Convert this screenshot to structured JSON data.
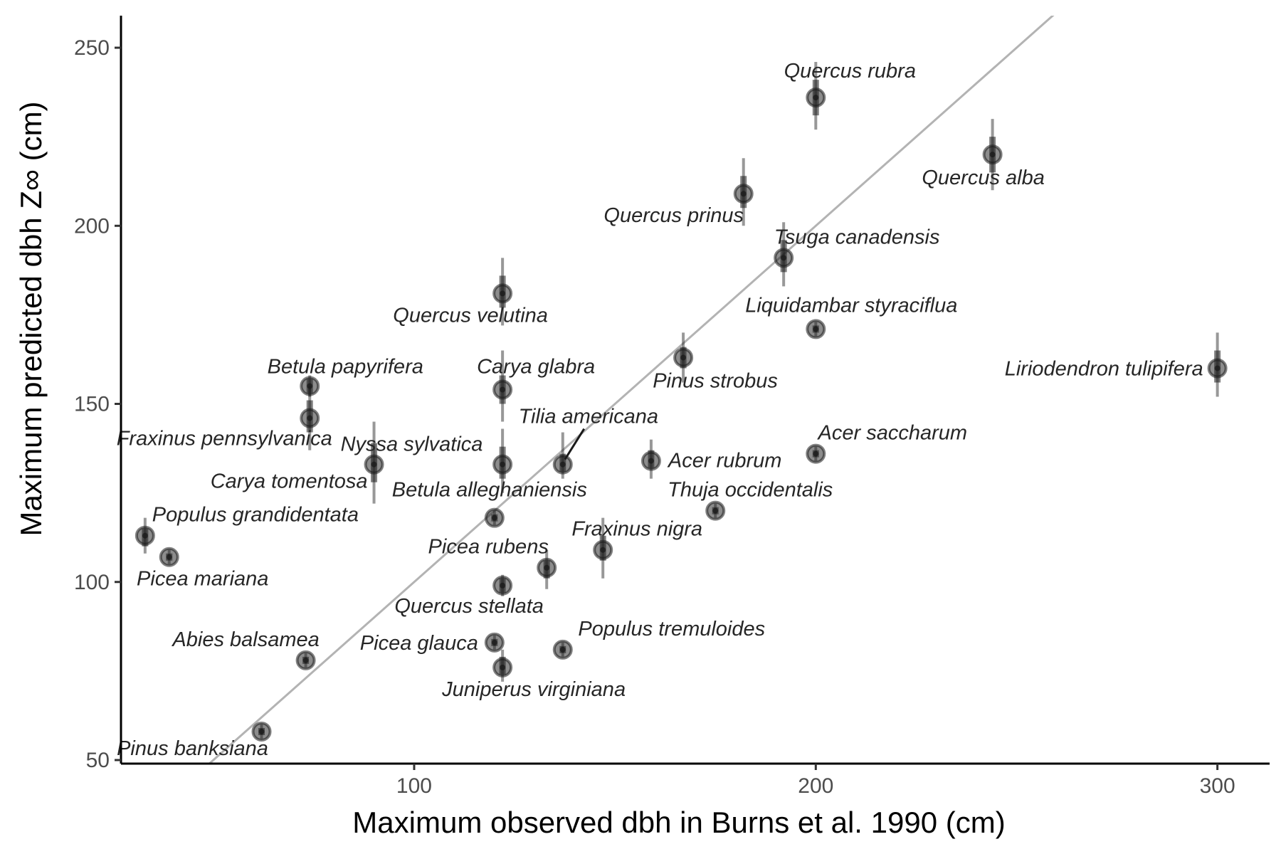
{
  "chart_data": {
    "type": "scatter",
    "title": "",
    "xlabel": "Maximum observed dbh in Burns et al. 1990 (cm)",
    "ylabel": "Maximum predicted dbh Z∞ (cm)",
    "xlim": [
      27,
      313
    ],
    "ylim": [
      49,
      259
    ],
    "x_ticks": [
      100,
      200,
      300
    ],
    "y_ticks": [
      50,
      100,
      150,
      200,
      250
    ],
    "grid": false,
    "legend": "none",
    "reference_line": {
      "slope": 1,
      "intercept": 0,
      "color": "#b3b3b3"
    },
    "colors": {
      "point": "#1a1a1a",
      "interval": "#1a1a1a",
      "reference_line": "#b3b3b3",
      "axis": "#000000"
    },
    "points": [
      {
        "name": "Quercus rubra",
        "x": 200,
        "y": 236,
        "lo80": 231,
        "hi80": 241,
        "lo95": 227,
        "hi95": 246
      },
      {
        "name": "Quercus alba",
        "x": 244,
        "y": 220,
        "lo80": 215,
        "hi80": 225,
        "lo95": 210,
        "hi95": 230
      },
      {
        "name": "Quercus prinus",
        "x": 182,
        "y": 209,
        "lo80": 205,
        "hi80": 214,
        "lo95": 200,
        "hi95": 219
      },
      {
        "name": "Tsuga canadensis",
        "x": 192,
        "y": 191,
        "lo80": 187,
        "hi80": 196,
        "lo95": 183,
        "hi95": 201
      },
      {
        "name": "Quercus velutina",
        "x": 122,
        "y": 181,
        "lo80": 177,
        "hi80": 186,
        "lo95": 172,
        "hi95": 191
      },
      {
        "name": "Liquidambar styraciflua",
        "x": 200,
        "y": 171,
        "lo80": 170,
        "hi80": 172,
        "lo95": 169,
        "hi95": 173
      },
      {
        "name": "Liriodendron tulipifera",
        "x": 300,
        "y": 160,
        "lo80": 156,
        "hi80": 165,
        "lo95": 152,
        "hi95": 170
      },
      {
        "name": "Pinus strobus",
        "x": 167,
        "y": 163,
        "lo80": 160,
        "hi80": 166,
        "lo95": 156,
        "hi95": 170
      },
      {
        "name": "Betula papyrifera",
        "x": 74,
        "y": 155,
        "lo80": 153,
        "hi80": 157,
        "lo95": 152,
        "hi95": 158
      },
      {
        "name": "Carya glabra",
        "x": 122,
        "y": 154,
        "lo80": 150,
        "hi80": 158,
        "lo95": 145,
        "hi95": 165
      },
      {
        "name": "Fraxinus pennsylvanica",
        "x": 74,
        "y": 146,
        "lo80": 142,
        "hi80": 151,
        "lo95": 137,
        "hi95": 155
      },
      {
        "name": "Nyssa sylvatica",
        "x": 90,
        "y": 133,
        "lo80": 128,
        "hi80": 139,
        "lo95": 122,
        "hi95": 145
      },
      {
        "name": "Carya tomentosa",
        "x": 122,
        "y": 133,
        "lo80": 129,
        "hi80": 138,
        "lo95": 125,
        "hi95": 143
      },
      {
        "name": "Tilia americana",
        "x": 137,
        "y": 133,
        "lo80": 131,
        "hi80": 136,
        "lo95": 129,
        "hi95": 142
      },
      {
        "name": "Acer rubrum",
        "x": 159,
        "y": 134,
        "lo80": 132,
        "hi80": 137,
        "lo95": 129,
        "hi95": 140
      },
      {
        "name": "Acer saccharum",
        "x": 200,
        "y": 136,
        "lo80": 135,
        "hi80": 137,
        "lo95": 134,
        "hi95": 138
      },
      {
        "name": "Betula alleghaniensis",
        "x": 120,
        "y": 118,
        "lo80": 117,
        "hi80": 119,
        "lo95": 116,
        "hi95": 120
      },
      {
        "name": "Thuja occidentalis",
        "x": 175,
        "y": 120,
        "lo80": 119,
        "hi80": 121,
        "lo95": 118,
        "hi95": 122
      },
      {
        "name": "Populus grandidentata",
        "x": 33,
        "y": 113,
        "lo80": 110,
        "hi80": 115,
        "lo95": 108,
        "hi95": 118
      },
      {
        "name": "Picea mariana",
        "x": 39,
        "y": 107,
        "lo80": 106,
        "hi80": 108,
        "lo95": 105,
        "hi95": 109
      },
      {
        "name": "Fraxinus nigra",
        "x": 147,
        "y": 109,
        "lo80": 106,
        "hi80": 113,
        "lo95": 101,
        "hi95": 118
      },
      {
        "name": "Picea rubens",
        "x": 133,
        "y": 104,
        "lo80": 101,
        "hi80": 106,
        "lo95": 98,
        "hi95": 109
      },
      {
        "name": "Quercus stellata",
        "x": 122,
        "y": 99,
        "lo80": 97,
        "hi80": 101,
        "lo95": 96,
        "hi95": 102
      },
      {
        "name": "Populus tremuloides",
        "x": 137,
        "y": 81,
        "lo80": 80,
        "hi80": 82,
        "lo95": 79,
        "hi95": 83
      },
      {
        "name": "Picea glauca",
        "x": 120,
        "y": 83,
        "lo80": 82,
        "hi80": 84,
        "lo95": 81,
        "hi95": 85
      },
      {
        "name": "Abies balsamea",
        "x": 73,
        "y": 78,
        "lo80": 77,
        "hi80": 79,
        "lo95": 76,
        "hi95": 80
      },
      {
        "name": "Juniperus virginiana",
        "x": 122,
        "y": 76,
        "lo80": 74,
        "hi80": 79,
        "lo95": 72,
        "hi95": 81
      },
      {
        "name": "Pinus banksiana",
        "x": 62,
        "y": 58,
        "lo80": 57,
        "hi80": 59,
        "lo95": 56,
        "hi95": 60
      }
    ]
  }
}
